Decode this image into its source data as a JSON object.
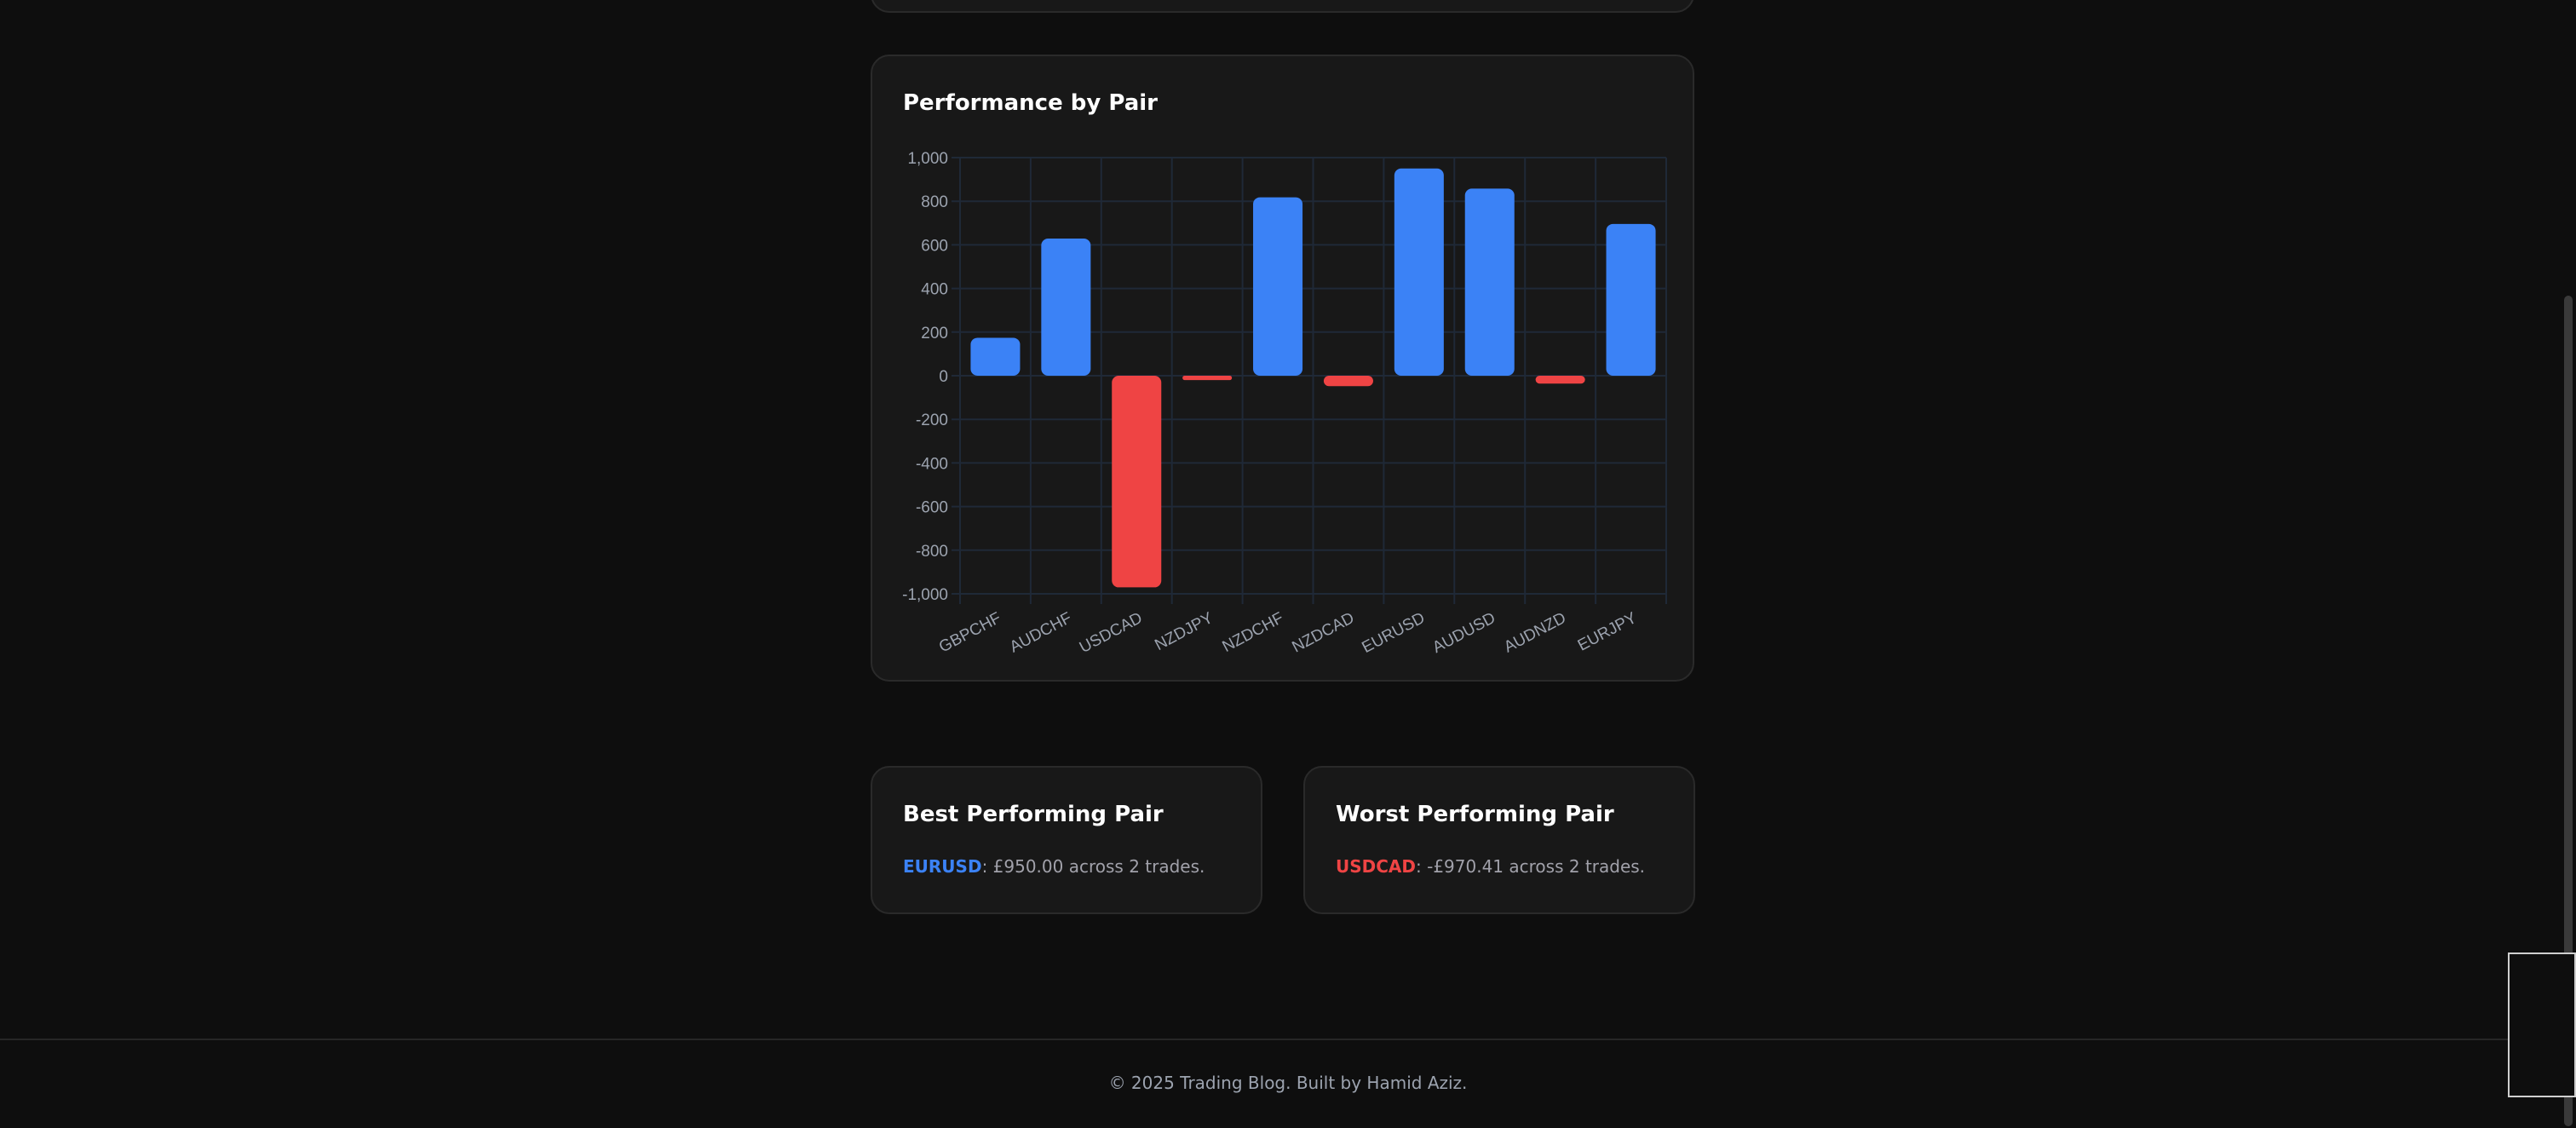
{
  "chart_card": {
    "title": "Performance by Pair"
  },
  "chart_data": {
    "type": "bar",
    "title": "Performance by Pair",
    "categories": [
      "GBPCHF",
      "AUDCHF",
      "USDCAD",
      "NZDJPY",
      "NZDCHF",
      "NZDCAD",
      "EURUSD",
      "AUDUSD",
      "AUDNZD",
      "EURJPY"
    ],
    "values": [
      174,
      629,
      -970.41,
      -20,
      818,
      -48,
      950,
      858,
      -36,
      696
    ],
    "ylim": [
      -1000,
      1000
    ],
    "yticks": [
      1000,
      800,
      600,
      400,
      200,
      0,
      -200,
      -400,
      -600,
      -800,
      -1000
    ],
    "ytick_labels": [
      "1,000",
      "800",
      "600",
      "400",
      "200",
      "0",
      "-200",
      "-400",
      "-600",
      "-800",
      "-1,000"
    ],
    "grid": true,
    "colors": {
      "positive": "#3b82f6",
      "negative": "#ef4444",
      "grid": "#1f2937",
      "tick": "#9ca3af"
    }
  },
  "best": {
    "title": "Best Performing Pair",
    "pair": "EURUSD",
    "text": ": £950.00 across 2 trades."
  },
  "worst": {
    "title": "Worst Performing Pair",
    "pair": "USDCAD",
    "text": ": -£970.41 across 2 trades."
  },
  "footer": {
    "text": "© 2025 Trading Blog. Built by Hamid Aziz."
  }
}
